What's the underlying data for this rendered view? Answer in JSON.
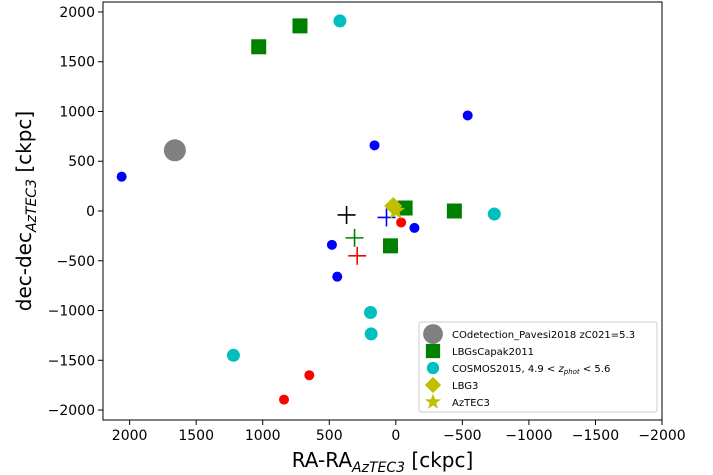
{
  "chart_data": {
    "type": "scatter",
    "xlabel": "RA-RA",
    "xlabel_sub": "AzTEC3",
    "xlabel_unit": "[ckpc]",
    "ylabel": "dec-dec",
    "ylabel_sub": "AzTEC3",
    "ylabel_unit": "[ckpc]",
    "xlim": [
      2200,
      -2000
    ],
    "ylim": [
      -2100,
      2100
    ],
    "x_ticks": [
      2000,
      1500,
      1000,
      500,
      0,
      -500,
      -1000,
      -1500,
      -2000
    ],
    "x_tick_labels": [
      "2000",
      "1500",
      "1000",
      "500",
      "0",
      "−500",
      "−1000",
      "−1500",
      "−2000"
    ],
    "y_ticks": [
      2000,
      1500,
      1000,
      500,
      0,
      -500,
      -1000,
      -1500,
      -2000
    ],
    "y_tick_labels": [
      "2000",
      "1500",
      "1000",
      "500",
      "0",
      "−500",
      "−1000",
      "−1500",
      "−2000"
    ],
    "grid": false,
    "legend_position": "lower-right",
    "series": [
      {
        "name": "COdetection_Pavesi2018 zC021=5.3",
        "marker": "circle-large",
        "color": "#808080",
        "points": [
          [
            1660,
            610
          ]
        ]
      },
      {
        "name": "LBGsCapak2011",
        "marker": "square",
        "color": "#008000",
        "points": [
          [
            1030,
            1650
          ],
          [
            720,
            1860
          ],
          [
            40,
            -350
          ],
          [
            -70,
            30
          ],
          [
            -440,
            0
          ]
        ]
      },
      {
        "name": "COSMOS2015, 4.9 < z_phot < 5.6",
        "marker": "circle",
        "color": "#00bfbf",
        "points": [
          [
            420,
            1910
          ],
          [
            -740,
            -30
          ],
          [
            190,
            -1020
          ],
          [
            185,
            -1235
          ],
          [
            1220,
            -1450
          ]
        ]
      },
      {
        "name": "LBG3",
        "marker": "diamond",
        "color": "#bfbf00",
        "points": [
          [
            20,
            50
          ]
        ]
      },
      {
        "name": "AzTEC3",
        "marker": "star",
        "color": "#bfbf00",
        "points": [
          [
            0,
            0
          ]
        ]
      }
    ],
    "extra_markers": [
      {
        "marker": "dot",
        "color": "#0000ff",
        "points": [
          [
            2060,
            345
          ],
          [
            160,
            660
          ],
          [
            -540,
            960
          ],
          [
            480,
            -340
          ],
          [
            440,
            -660
          ],
          [
            -140,
            -170
          ]
        ]
      },
      {
        "marker": "dot",
        "color": "#ff0000",
        "points": [
          [
            -40,
            -115
          ],
          [
            650,
            -1650
          ],
          [
            840,
            -1895
          ]
        ]
      },
      {
        "marker": "plus",
        "color": "#000000",
        "points": [
          [
            370,
            -40
          ]
        ]
      },
      {
        "marker": "plus",
        "color": "#0000ff",
        "points": [
          [
            70,
            -65
          ]
        ]
      },
      {
        "marker": "plus",
        "color": "#008000",
        "points": [
          [
            310,
            -270
          ]
        ]
      },
      {
        "marker": "plus",
        "color": "#ff0000",
        "points": [
          [
            290,
            -450
          ]
        ]
      }
    ]
  },
  "legend_labels": {
    "co": "COdetection_Pavesi2018 zC021=5.3",
    "lbg_capak": "LBGsCapak2011",
    "cosmos_prefix": "COSMOS2015, 4.9 <",
    "cosmos_z": "z",
    "cosmos_sub": "phot",
    "cosmos_suffix": "< 5.6",
    "lbg3": "LBG3",
    "aztec3": "AzTEC3"
  }
}
